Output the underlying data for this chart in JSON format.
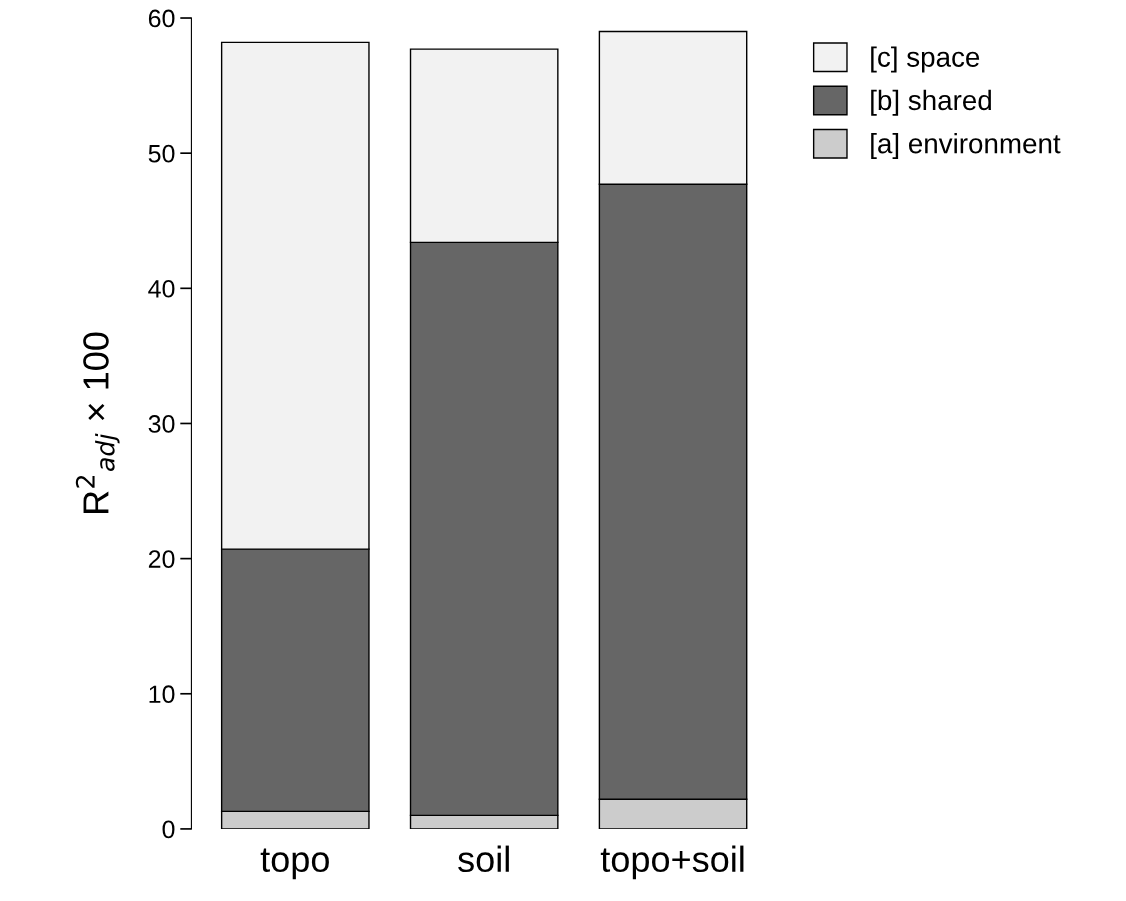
{
  "chart_data": {
    "type": "bar",
    "stacked": true,
    "ylabel": "R$^{2}$$_{adj}$ × 100",
    "categories": [
      "topo",
      "soil",
      "topo+soil"
    ],
    "series": [
      {
        "name": "[a] environment",
        "color": "#cccccc",
        "values": [
          1.3,
          1.0,
          2.2
        ]
      },
      {
        "name": "[b] shared",
        "color": "#666666",
        "values": [
          19.4,
          42.4,
          45.5
        ]
      },
      {
        "name": "[c] space",
        "color": "#f2f2f2",
        "values": [
          37.5,
          14.3,
          11.3
        ]
      }
    ],
    "ylim": [
      0,
      60
    ],
    "yticks": [
      0,
      10,
      20,
      30,
      40,
      50,
      60
    ],
    "grid": false,
    "legend": "top right"
  }
}
